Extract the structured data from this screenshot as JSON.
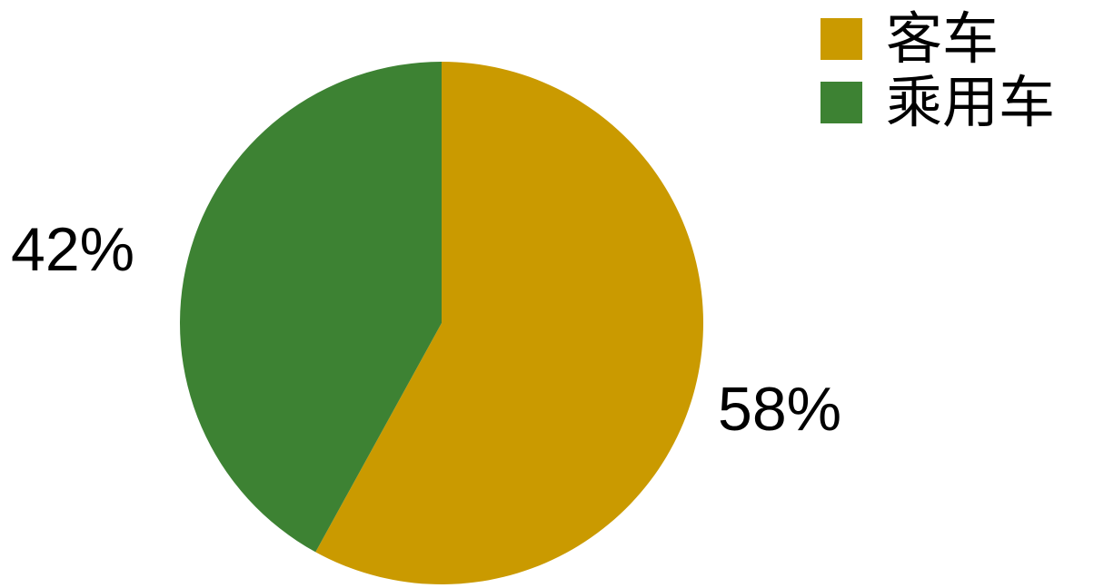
{
  "chart_data": {
    "type": "pie",
    "categories": [
      "客车",
      "乘用车"
    ],
    "values": [
      58,
      42
    ],
    "labels": [
      "58%",
      "42%"
    ],
    "colors": [
      "#CA9A00",
      "#3D8233"
    ],
    "legend_position": "top-right",
    "start": "top",
    "direction": "clockwise"
  }
}
